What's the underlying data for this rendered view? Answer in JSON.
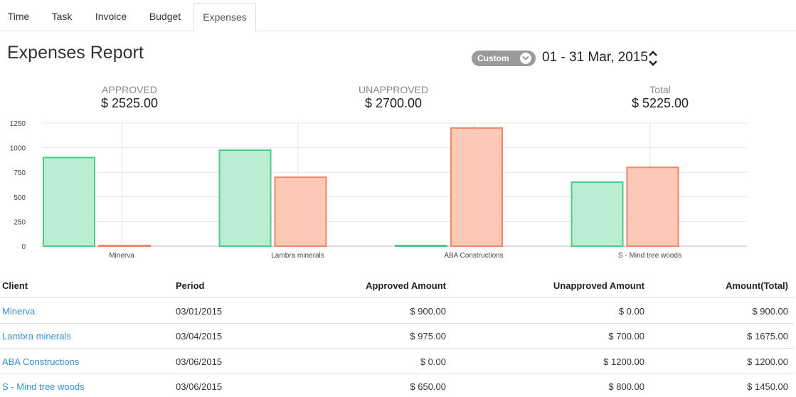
{
  "tabs": [
    {
      "label": "Time",
      "active": false
    },
    {
      "label": "Task",
      "active": false
    },
    {
      "label": "Invoice",
      "active": false
    },
    {
      "label": "Budget",
      "active": false
    },
    {
      "label": "Expenses",
      "active": true
    }
  ],
  "page_title": "Expenses Report",
  "period": {
    "selected": "Custom",
    "range": "01 - 31 Mar, 2015"
  },
  "summary": {
    "approved": {
      "label": "APPROVED",
      "value": "$ 2525.00"
    },
    "unapproved": {
      "label": "UNAPPROVED",
      "value": "$ 2700.00"
    },
    "total": {
      "label": "Total",
      "value": "$ 5225.00"
    }
  },
  "colors": {
    "approved_fill": "#b9eed3",
    "approved_stroke": "#4ecb87",
    "unapproved_fill": "#fcc9b8",
    "unapproved_stroke": "#ee8864",
    "link": "#3a8fd0"
  },
  "chart_data": {
    "type": "bar",
    "categories": [
      "Minerva",
      "Lambra minerals",
      "ABA Constructions",
      "S - Mind tree woods"
    ],
    "series": [
      {
        "values": [
          900,
          975,
          0,
          650
        ],
        "color": "#b9eed3"
      },
      {
        "values": [
          0,
          700,
          1200,
          800
        ],
        "color": "#fcc9b8"
      }
    ],
    "yticks": [
      "0",
      "250",
      "500",
      "750",
      "1000",
      "1250"
    ],
    "ylim": [
      0,
      1250
    ],
    "grid": true,
    "legend": "none"
  },
  "table": {
    "headers": {
      "client": "Client",
      "period": "Period",
      "approved": "Approved Amount",
      "unapproved": "Unapproved Amount",
      "total": "Amount(Total)"
    },
    "rows": [
      {
        "client": "Minerva",
        "period": "03/01/2015",
        "approved": "$ 900.00",
        "unapproved": "$ 0.00",
        "total": "$ 900.00"
      },
      {
        "client": "Lambra minerals",
        "period": "03/04/2015",
        "approved": "$ 975.00",
        "unapproved": "$ 700.00",
        "total": "$ 1675.00"
      },
      {
        "client": "ABA Constructions",
        "period": "03/06/2015",
        "approved": "$ 0.00",
        "unapproved": "$ 1200.00",
        "total": "$ 1200.00"
      },
      {
        "client": "S - Mind tree woods",
        "period": "03/06/2015",
        "approved": "$ 650.00",
        "unapproved": "$ 800.00",
        "total": "$ 1450.00"
      }
    ]
  }
}
